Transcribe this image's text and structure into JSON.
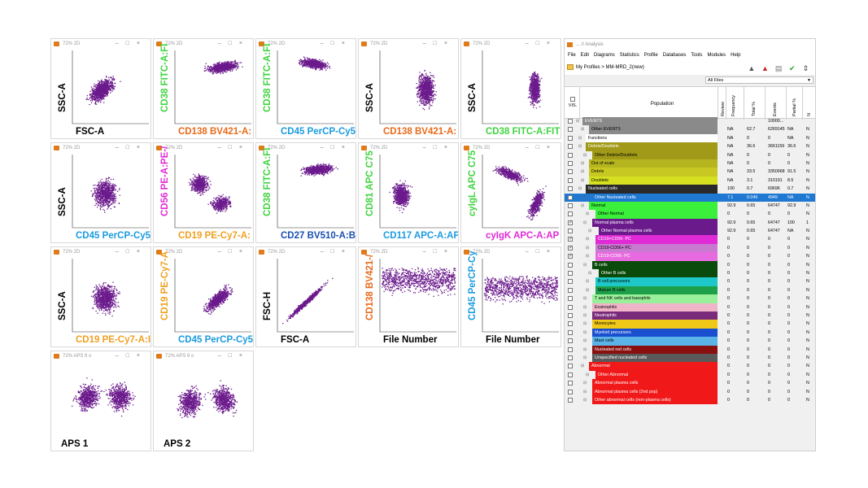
{
  "plot_panel": {
    "title_text": "72% 2D",
    "title_text_aps": "72% APS 9 o",
    "point_color": "#6b1a8c",
    "plots": [
      {
        "x_label": "FSC-A",
        "x_color": "#000000",
        "y_label": "SSC-A",
        "y_color": "#000000",
        "cluster": "diag-blob"
      },
      {
        "x_label": "CD138 BV421-A:",
        "x_color": "#e86a1a",
        "y_label": "CD38 FITC-A:FI",
        "y_color": "#3fd43f",
        "cluster": "upper-right-band"
      },
      {
        "x_label": "CD45 PerCP-Cy5",
        "x_color": "#1a9be0",
        "y_label": "CD38 FITC-A:FI",
        "y_color": "#3fd43f",
        "cluster": "upper-wedge"
      },
      {
        "x_label": "CD138 BV421-A:",
        "x_color": "#e86a1a",
        "y_label": "SSC-A",
        "y_color": "#000000",
        "cluster": "tall-right"
      },
      {
        "x_label": "CD38 FITC-A:FIT",
        "x_color": "#3fd43f",
        "y_label": "SSC-A",
        "y_color": "#000000",
        "cluster": "tall-narrow"
      },
      {
        "x_label": "CD45 PerCP-Cy5",
        "x_color": "#1a9be0",
        "y_label": "SSC-A",
        "y_color": "#000000",
        "cluster": "center-blob"
      },
      {
        "x_label": "CD19 PE-Cy7-A:",
        "x_color": "#f0a020",
        "y_label": "CD56 PE-A:PE-/",
        "y_color": "#e02ad6",
        "cluster": "two-blob"
      },
      {
        "x_label": "CD27 BV510-A:B",
        "x_color": "#1a4fb0",
        "y_label": "CD38 FITC-A:FI",
        "y_color": "#3fd43f",
        "cluster": "upper-band"
      },
      {
        "x_label": "CD117 APC-A:AP",
        "x_color": "#1a9be0",
        "y_label": "CD81 APC C75",
        "y_color": "#3fd43f",
        "cluster": "left-blob"
      },
      {
        "x_label": "cyIgK APC-A:AP",
        "x_color": "#e02ad6",
        "y_label": "cyIgL APC C75",
        "y_color": "#3fd43f",
        "cluster": "two-diag"
      },
      {
        "x_label": "CD19 PE-Cy7-A:I",
        "x_color": "#f0a020",
        "y_label": "SSC-A",
        "y_color": "#000000",
        "cluster": "center-blob"
      },
      {
        "x_label": "CD45 PerCP-Cy5",
        "x_color": "#1a9be0",
        "y_label": "CD19 PE-Cy7-A",
        "y_color": "#f0a020",
        "cluster": "rising"
      },
      {
        "x_label": "FSC-A",
        "x_color": "#000000",
        "y_label": "FSC-H",
        "y_color": "#000000",
        "cluster": "diag-line"
      },
      {
        "x_label": "File Number",
        "x_color": "#000000",
        "y_label": "CD138 BV421-/",
        "y_color": "#e86a1a",
        "cluster": "file-band-high"
      },
      {
        "x_label": "File Number",
        "x_color": "#000000",
        "y_label": "CD45 PerCP-Cy",
        "y_color": "#1a9be0",
        "cluster": "file-band-mid"
      },
      {
        "x_label": "APS 1",
        "x_color": "#000000",
        "y_label": "",
        "y_color": "#000000",
        "cluster": "aps1"
      },
      {
        "x_label": "APS 2",
        "x_color": "#000000",
        "y_label": "",
        "y_color": "#000000",
        "cluster": "aps2"
      }
    ]
  },
  "analysis_window": {
    "title": "... // Analysis",
    "menu": [
      "File",
      "Edit",
      "Diagrams",
      "Statistics",
      "Profile",
      "Databases",
      "Tools",
      "Modules",
      "Help"
    ],
    "breadcrumb": "My Profiles  >  MM-MRD_2(new)",
    "file_filter": "All Files",
    "header": {
      "vis": "VIS.",
      "population": "Population",
      "review": "Review",
      "frequency": "Frequency",
      "total_pct": "Total %",
      "events": "Events",
      "partial_pct": "Partial %",
      "n": "N"
    },
    "rows": [
      {
        "name": "EVENTS",
        "bg": "#8a8a8a",
        "fg": "#ffffff",
        "indent": 0,
        "freq": "",
        "total": "",
        "events": "10000...",
        "partial": "",
        "n": "",
        "checked": false
      },
      {
        "name": "Other EVENTS",
        "bg": "#8a8a8a",
        "fg": "#000000",
        "indent": 2,
        "freq": "NA",
        "total": "62.7",
        "events": "6269145",
        "partial": "NA",
        "n": "N",
        "checked": false
      },
      {
        "name": "Functions",
        "bg": "#ffffff",
        "fg": "#000000",
        "indent": 1,
        "freq": "NA",
        "total": "0",
        "events": "0",
        "partial": "NA",
        "n": "N",
        "checked": false
      },
      {
        "name": "Debris/Doublets",
        "bg": "#a19a18",
        "fg": "#ffffff",
        "indent": 1,
        "freq": "NA",
        "total": "36.6",
        "events": "3661159",
        "partial": "36.6",
        "n": "N",
        "checked": false
      },
      {
        "name": "Other Debris/Doublets",
        "bg": "#a19a18",
        "fg": "#000000",
        "indent": 3,
        "freq": "NA",
        "total": "0",
        "events": "0",
        "partial": "0",
        "n": "N",
        "checked": false
      },
      {
        "name": "Out of scale",
        "bg": "#b5b520",
        "fg": "#000000",
        "indent": 2,
        "freq": "NA",
        "total": "0",
        "events": "0",
        "partial": "0",
        "n": "N",
        "checked": false
      },
      {
        "name": "Debris",
        "bg": "#c8c822",
        "fg": "#000000",
        "indent": 2,
        "freq": "NA",
        "total": "33.5",
        "events": "3350968",
        "partial": "91.5",
        "n": "N",
        "checked": false
      },
      {
        "name": "Doublets",
        "bg": "#d4e020",
        "fg": "#000000",
        "indent": 2,
        "freq": "NA",
        "total": "3.1",
        "events": "310191",
        "partial": "8.5",
        "n": "N",
        "checked": false
      },
      {
        "name": "Nucleated cells",
        "bg": "#2a2a2a",
        "fg": "#ffffff",
        "indent": 1,
        "freq": "100",
        "total": "0.7",
        "events": "69696",
        "partial": "0.7",
        "n": "N",
        "checked": false
      },
      {
        "name": "Other Nucleated cells",
        "bg": "#1f78d1",
        "fg": "#ffffff",
        "indent": 3,
        "freq": "7.1",
        "total": "0.049",
        "events": "4949",
        "partial": "NA",
        "n": "N",
        "checked": false,
        "selected": true
      },
      {
        "name": "Normal",
        "bg": "#3af03a",
        "fg": "#000000",
        "indent": 2,
        "freq": "92.9",
        "total": "0.65",
        "events": "64747",
        "partial": "92.9",
        "n": "N",
        "checked": false
      },
      {
        "name": "Other Normal",
        "bg": "#3af03a",
        "fg": "#000000",
        "indent": 4,
        "freq": "0",
        "total": "0",
        "events": "0",
        "partial": "0",
        "n": "N",
        "checked": false
      },
      {
        "name": "Normal plasma cells",
        "bg": "#6b1a8c",
        "fg": "#ffffff",
        "indent": 3,
        "freq": "92.9",
        "total": "0.65",
        "events": "64747",
        "partial": "100",
        "n": "1",
        "checked": true
      },
      {
        "name": "Other Normal plasma cells",
        "bg": "#6b1a8c",
        "fg": "#ffffff",
        "indent": 5,
        "freq": "92.9",
        "total": "0.65",
        "events": "64747",
        "partial": "NA",
        "n": "N",
        "checked": false
      },
      {
        "name": "CD19+CD56- PC",
        "bg": "#e02ad6",
        "fg": "#ffffff",
        "indent": 4,
        "freq": "0",
        "total": "0",
        "events": "0",
        "partial": "0",
        "n": "N",
        "checked": true
      },
      {
        "name": "CD19-CD56+ PC",
        "bg": "#c87ad0",
        "fg": "#000000",
        "indent": 4,
        "freq": "0",
        "total": "0",
        "events": "0",
        "partial": "0",
        "n": "N",
        "checked": true
      },
      {
        "name": "CD19-CD56- PC",
        "bg": "#e86ae0",
        "fg": "#ffffff",
        "indent": 4,
        "freq": "0",
        "total": "0",
        "events": "0",
        "partial": "0",
        "n": "N",
        "checked": true
      },
      {
        "name": "B cells",
        "bg": "#0a4a0a",
        "fg": "#ffffff",
        "indent": 3,
        "freq": "0",
        "total": "0",
        "events": "0",
        "partial": "0",
        "n": "N",
        "checked": false
      },
      {
        "name": "Other B cells",
        "bg": "#0a4a0a",
        "fg": "#ffffff",
        "indent": 5,
        "freq": "0",
        "total": "0",
        "events": "0",
        "partial": "0",
        "n": "N",
        "checked": false
      },
      {
        "name": "B cell precursors",
        "bg": "#1ec8c8",
        "fg": "#000000",
        "indent": 4,
        "freq": "0",
        "total": "0",
        "events": "0",
        "partial": "0",
        "n": "N",
        "checked": false
      },
      {
        "name": "Mature B cells",
        "bg": "#1ea04a",
        "fg": "#000000",
        "indent": 4,
        "freq": "0",
        "total": "0",
        "events": "0",
        "partial": "0",
        "n": "N",
        "checked": false
      },
      {
        "name": "T and NK cells and basophils",
        "bg": "#9af09a",
        "fg": "#000000",
        "indent": 3,
        "freq": "0",
        "total": "0",
        "events": "0",
        "partial": "0",
        "n": "N",
        "checked": false
      },
      {
        "name": "Eosinophils",
        "bg": "#f0b4c8",
        "fg": "#000000",
        "indent": 3,
        "freq": "0",
        "total": "0",
        "events": "0",
        "partial": "0",
        "n": "N",
        "checked": false
      },
      {
        "name": "Neutrophils",
        "bg": "#7a2a7a",
        "fg": "#ffffff",
        "indent": 3,
        "freq": "0",
        "total": "0",
        "events": "0",
        "partial": "0",
        "n": "N",
        "checked": false
      },
      {
        "name": "Monocytes",
        "bg": "#f0c818",
        "fg": "#000000",
        "indent": 3,
        "freq": "0",
        "total": "0",
        "events": "0",
        "partial": "0",
        "n": "N",
        "checked": false
      },
      {
        "name": "Myeloid precursors",
        "bg": "#1a4fd0",
        "fg": "#ffffff",
        "indent": 3,
        "freq": "0",
        "total": "0",
        "events": "0",
        "partial": "0",
        "n": "N",
        "checked": false
      },
      {
        "name": "Mast cells",
        "bg": "#5ab4e8",
        "fg": "#000000",
        "indent": 3,
        "freq": "0",
        "total": "0",
        "events": "0",
        "partial": "0",
        "n": "N",
        "checked": false
      },
      {
        "name": "Nucleated red cells",
        "bg": "#8a1010",
        "fg": "#ffffff",
        "indent": 3,
        "freq": "0",
        "total": "0",
        "events": "0",
        "partial": "0",
        "n": "N",
        "checked": false
      },
      {
        "name": "Unspecified nucleated cells",
        "bg": "#5a5a5a",
        "fg": "#ffffff",
        "indent": 3,
        "freq": "0",
        "total": "0",
        "events": "0",
        "partial": "0",
        "n": "N",
        "checked": false
      },
      {
        "name": "Abnormal",
        "bg": "#f01818",
        "fg": "#ffffff",
        "indent": 2,
        "freq": "0",
        "total": "0",
        "events": "0",
        "partial": "0",
        "n": "N",
        "checked": false
      },
      {
        "name": "Other Abnormal",
        "bg": "#f01818",
        "fg": "#ffffff",
        "indent": 4,
        "freq": "0",
        "total": "0",
        "events": "0",
        "partial": "0",
        "n": "N",
        "checked": false
      },
      {
        "name": "Abnormal plasma cells",
        "bg": "#f01818",
        "fg": "#ffffff",
        "indent": 3,
        "freq": "0",
        "total": "0",
        "events": "0",
        "partial": "0",
        "n": "N",
        "checked": false
      },
      {
        "name": "Abnormal plasma cells (2nd pop)",
        "bg": "#f01818",
        "fg": "#ffffff",
        "indent": 3,
        "freq": "0",
        "total": "0",
        "events": "0",
        "partial": "0",
        "n": "N",
        "checked": false
      },
      {
        "name": "Other abnormal cells (non-plasma cells)",
        "bg": "#f01818",
        "fg": "#ffffff",
        "indent": 3,
        "freq": "0",
        "total": "0",
        "events": "0",
        "partial": "0",
        "n": "N",
        "checked": false
      }
    ]
  }
}
